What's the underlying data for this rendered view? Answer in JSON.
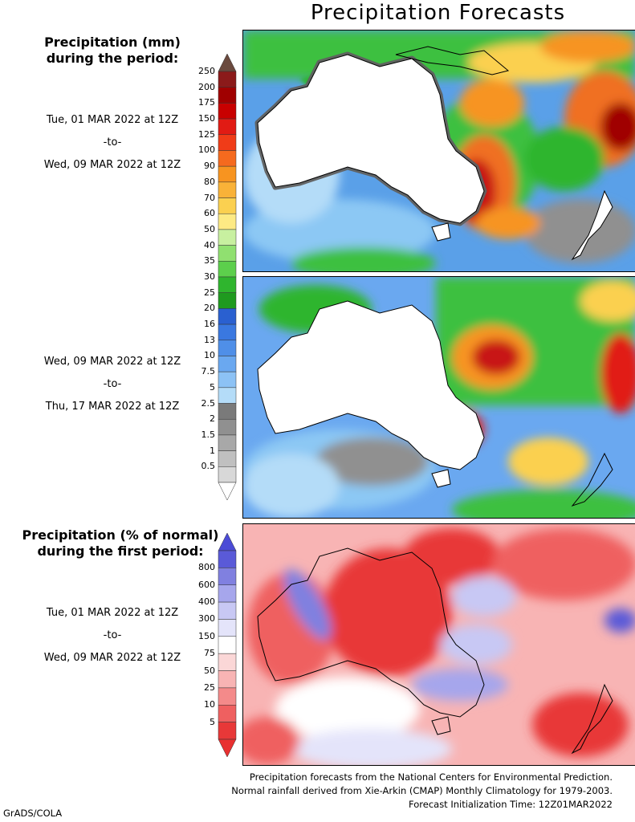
{
  "title": "Precipitation Forecasts",
  "panel1_heading": [
    "Precipitation (mm)",
    "during the period:"
  ],
  "period1": {
    "start": "Tue, 01 MAR 2022 at 12Z",
    "sep": "-to-",
    "end": "Wed, 09 MAR 2022 at 12Z"
  },
  "period2": {
    "start": "Wed, 09 MAR 2022 at 12Z",
    "sep": "-to-",
    "end": "Thu, 17 MAR 2022 at 12Z"
  },
  "panel3_heading": [
    "Precipitation (% of normal)",
    "during the first period:"
  ],
  "period3": {
    "start": "Tue, 01 MAR 2022 at 12Z",
    "sep": "-to-",
    "end": "Wed, 09 MAR 2022 at 12Z"
  },
  "mm_scale": {
    "labels": [
      "250",
      "200",
      "175",
      "150",
      "125",
      "100",
      "90",
      "80",
      "70",
      "60",
      "50",
      "40",
      "35",
      "30",
      "25",
      "20",
      "16",
      "13",
      "10",
      "7.5",
      "5",
      "2.5",
      "2",
      "1.5",
      "1",
      "0.5"
    ],
    "colors": [
      "#8b1a1a",
      "#a00000",
      "#c80000",
      "#e11b14",
      "#f03c18",
      "#f56a1e",
      "#f79420",
      "#f9b238",
      "#fbd050",
      "#fdea84",
      "#c8f0a0",
      "#90e070",
      "#5ccf4c",
      "#2fb52e",
      "#1f9a1f",
      "#2a60d0",
      "#3a78e0",
      "#4f8fe8",
      "#6aa8f0",
      "#8cc2f5",
      "#b4dcf8",
      "#7a7a7a",
      "#909090",
      "#a8a8a8",
      "#c0c0c0",
      "#d8d8d8"
    ],
    "top_cap": "#6b4a3e",
    "bottom_cap": "#ffffff"
  },
  "pct_scale": {
    "labels": [
      "800",
      "600",
      "400",
      "300",
      "150",
      "75",
      "50",
      "25",
      "10",
      "5"
    ],
    "colors": [
      "#5a5ad8",
      "#8080e0",
      "#a6a6ec",
      "#c8c8f4",
      "#e4e4fa",
      "#ffffff",
      "#fbd7d7",
      "#f8b4b4",
      "#f48a8a",
      "#ef6060",
      "#e83838"
    ],
    "top_cap": "#4b4bd6",
    "bottom_cap": "#e83030"
  },
  "footer": [
    "Precipitation forecasts from the National Centers for Environmental Prediction.",
    "Normal rainfall derived from Xie-Arkin (CMAP) Monthly Climatology for 1979-2003.",
    "Forecast Initialization Time: 12Z01MAR2022"
  ],
  "credit": "GrADS/COLA"
}
